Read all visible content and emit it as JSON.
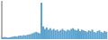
{
  "chart_data": {
    "type": "bar",
    "values": [
      5,
      6,
      5,
      4,
      5,
      6,
      7,
      8,
      7,
      9,
      10,
      9,
      11,
      10,
      12,
      13,
      14,
      16,
      18,
      20,
      18,
      16,
      100,
      35,
      28,
      32,
      26,
      30,
      25,
      28,
      24,
      26,
      22,
      25,
      28,
      24,
      22,
      26,
      24,
      28,
      30,
      26,
      24,
      28,
      22,
      26,
      24,
      22,
      20,
      24,
      22,
      26,
      20,
      18,
      22,
      24,
      20,
      18,
      22,
      20
    ],
    "color": "#5ba3d0",
    "ylim": [
      0,
      105
    ],
    "tick_labels": false,
    "grid": false
  }
}
